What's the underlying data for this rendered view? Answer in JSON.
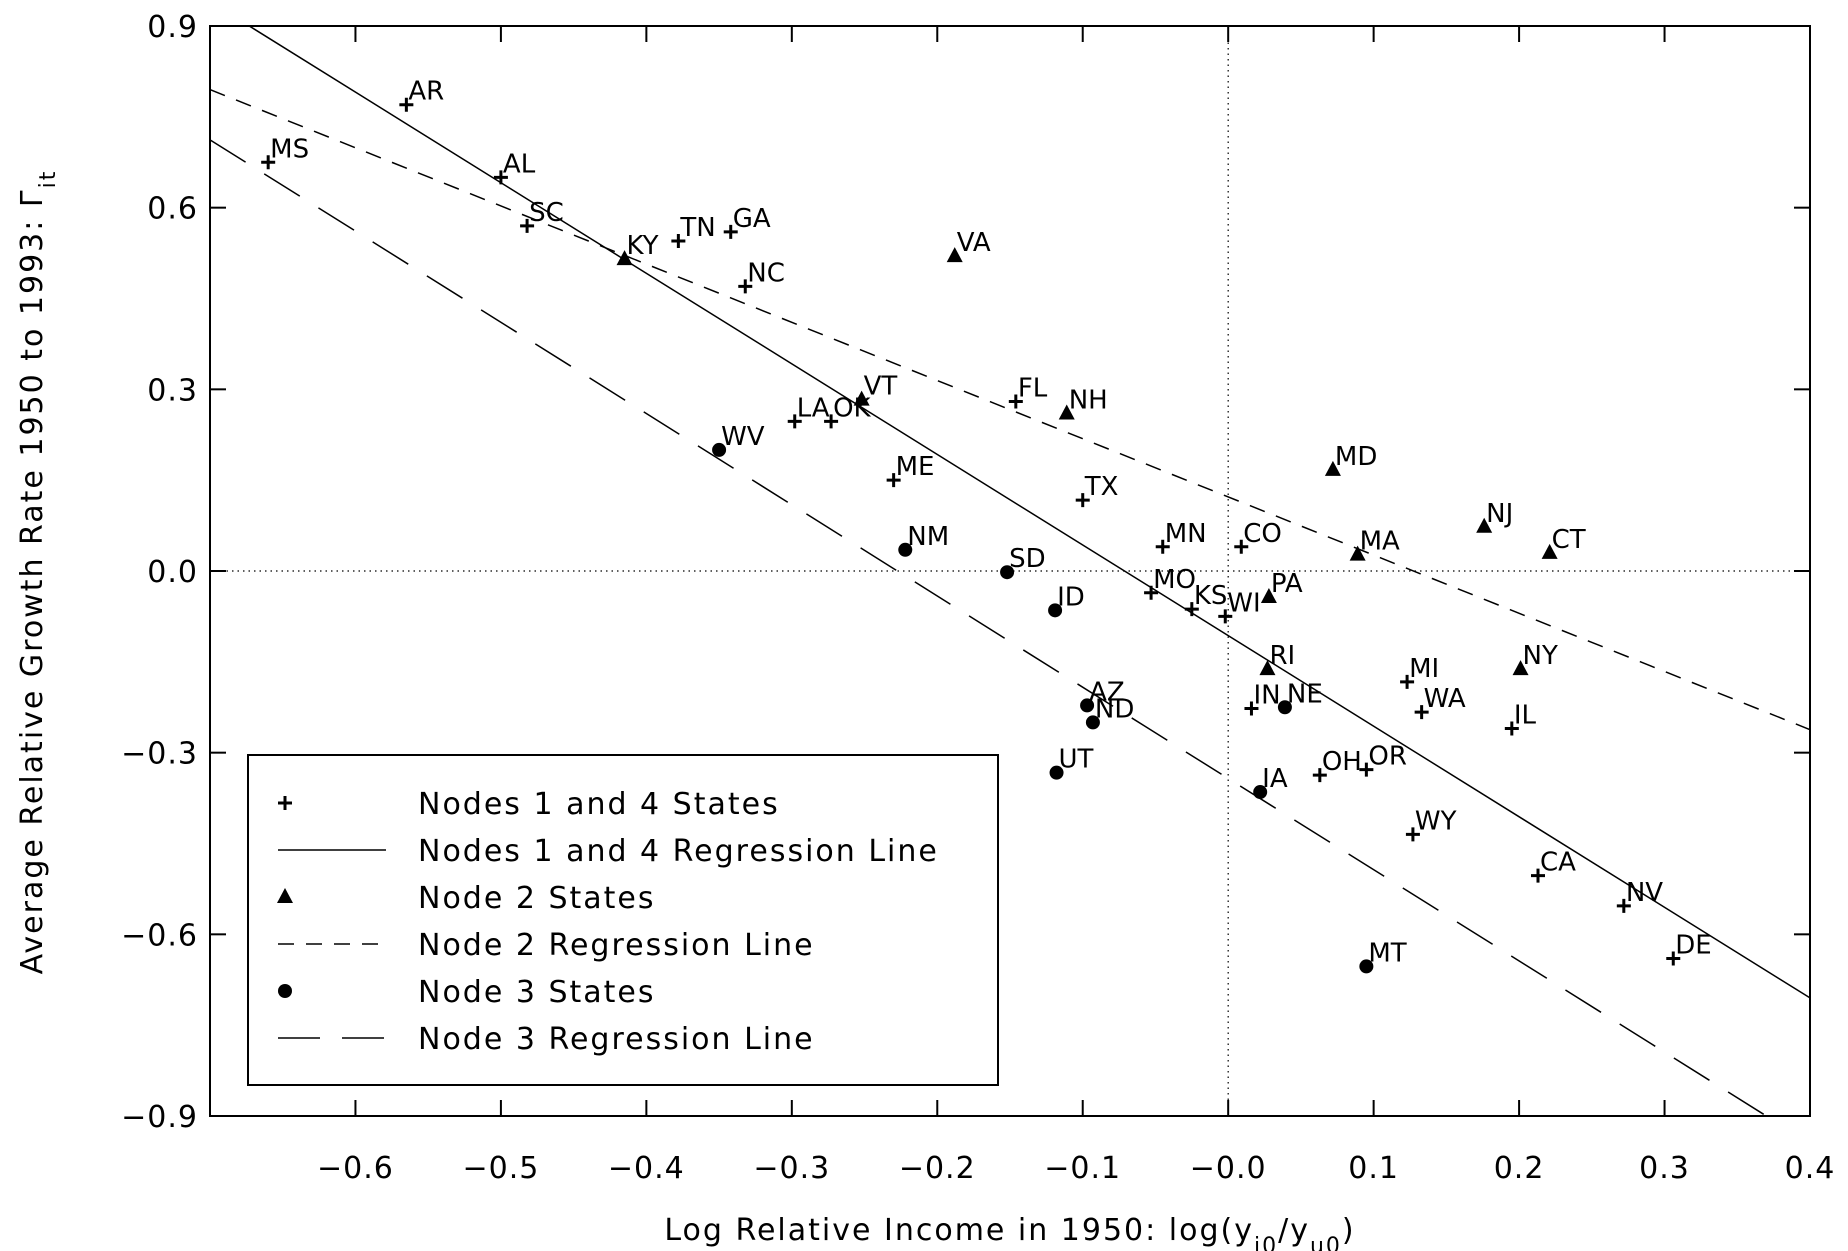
{
  "chart_data": {
    "type": "scatter",
    "xlabel": "Log Relative Income in 1950: log(y",
    "xlabel_parts": {
      "sub1": "i0",
      "slash": "/y",
      "sub2": "u0",
      "close": ")"
    },
    "ylabel": "Average Relative Growth Rate 1950 to 1993: Γ",
    "ylabel_sub": "it",
    "xlim": [
      -0.7,
      0.4
    ],
    "ylim": [
      -0.9,
      0.9
    ],
    "xticks": [
      -0.6,
      -0.5,
      -0.4,
      -0.3,
      -0.2,
      -0.1,
      0.0,
      0.1,
      0.2,
      0.3,
      0.4
    ],
    "xtick_labels": [
      "−0.6",
      "−0.5",
      "−0.4",
      "−0.3",
      "−0.2",
      "−0.1",
      "−0.0",
      "0.1",
      "0.2",
      "0.3",
      "0.4"
    ],
    "yticks": [
      -0.9,
      -0.6,
      -0.3,
      0.0,
      0.3,
      0.6,
      0.9
    ],
    "ytick_labels": [
      "−0.9",
      "−0.6",
      "−0.3",
      "0.0",
      "0.3",
      "0.6",
      "0.9"
    ],
    "reference_lines": {
      "x": 0.0,
      "y": 0.0,
      "style": "dotted"
    },
    "legend": {
      "placement": "bottom-left",
      "entries": [
        {
          "label": "Nodes 1 and 4 States",
          "marker": "plus"
        },
        {
          "label": "Nodes 1 and 4 Regression Line",
          "line": "solid"
        },
        {
          "label": "Node 2 States",
          "marker": "triangle"
        },
        {
          "label": "Node 2 Regression Line",
          "line": "short-dash"
        },
        {
          "label": "Node 3 States",
          "marker": "circle"
        },
        {
          "label": "Node 3 Regression Line",
          "line": "long-dash"
        }
      ]
    },
    "series": [
      {
        "name": "Nodes 1 and 4 States",
        "marker": "plus",
        "points": [
          {
            "label": "AR",
            "x": -0.565,
            "y": 0.77
          },
          {
            "label": "MS",
            "x": -0.66,
            "y": 0.675
          },
          {
            "label": "AL",
            "x": -0.5,
            "y": 0.65
          },
          {
            "label": "SC",
            "x": -0.482,
            "y": 0.57
          },
          {
            "label": "TN",
            "x": -0.378,
            "y": 0.545
          },
          {
            "label": "GA",
            "x": -0.342,
            "y": 0.56
          },
          {
            "label": "NC",
            "x": -0.332,
            "y": 0.47
          },
          {
            "label": "LA",
            "x": -0.298,
            "y": 0.247
          },
          {
            "label": "OK",
            "x": -0.273,
            "y": 0.247
          },
          {
            "label": "ME",
            "x": -0.23,
            "y": 0.15
          },
          {
            "label": "FL",
            "x": -0.146,
            "y": 0.28
          },
          {
            "label": "TX",
            "x": -0.1,
            "y": 0.117
          },
          {
            "label": "MN",
            "x": -0.045,
            "y": 0.04
          },
          {
            "label": "CO",
            "x": 0.009,
            "y": 0.04
          },
          {
            "label": "MO",
            "x": -0.053,
            "y": -0.036
          },
          {
            "label": "KS",
            "x": -0.025,
            "y": -0.063
          },
          {
            "label": "WI",
            "x": -0.002,
            "y": -0.075
          },
          {
            "label": "IN",
            "x": 0.016,
            "y": -0.227
          },
          {
            "label": "MI",
            "x": 0.123,
            "y": -0.183
          },
          {
            "label": "WA",
            "x": 0.133,
            "y": -0.233
          },
          {
            "label": "IL",
            "x": 0.195,
            "y": -0.26
          },
          {
            "label": "OH",
            "x": 0.063,
            "y": -0.337
          },
          {
            "label": "OR",
            "x": 0.095,
            "y": -0.328
          },
          {
            "label": "WY",
            "x": 0.127,
            "y": -0.435
          },
          {
            "label": "CA",
            "x": 0.213,
            "y": -0.503
          },
          {
            "label": "NV",
            "x": 0.272,
            "y": -0.553
          },
          {
            "label": "DE",
            "x": 0.306,
            "y": -0.64
          }
        ]
      },
      {
        "name": "Node 2 States",
        "marker": "triangle",
        "points": [
          {
            "label": "KY",
            "x": -0.415,
            "y": 0.515
          },
          {
            "label": "VA",
            "x": -0.188,
            "y": 0.52
          },
          {
            "label": "VT",
            "x": -0.252,
            "y": 0.283
          },
          {
            "label": "NH",
            "x": -0.111,
            "y": 0.26
          },
          {
            "label": "MD",
            "x": 0.072,
            "y": 0.167
          },
          {
            "label": "NJ",
            "x": 0.176,
            "y": 0.073
          },
          {
            "label": "CT",
            "x": 0.221,
            "y": 0.03
          },
          {
            "label": "MA",
            "x": 0.089,
            "y": 0.027
          },
          {
            "label": "PA",
            "x": 0.028,
            "y": -0.043
          },
          {
            "label": "RI",
            "x": 0.027,
            "y": -0.162
          },
          {
            "label": "NY",
            "x": 0.201,
            "y": -0.162
          }
        ]
      },
      {
        "name": "Node 3 States",
        "marker": "circle",
        "points": [
          {
            "label": "WV",
            "x": -0.35,
            "y": 0.2
          },
          {
            "label": "NM",
            "x": -0.222,
            "y": 0.035
          },
          {
            "label": "SD",
            "x": -0.152,
            "y": -0.002
          },
          {
            "label": "ID",
            "x": -0.119,
            "y": -0.065
          },
          {
            "label": "AZ",
            "x": -0.097,
            "y": -0.222
          },
          {
            "label": "ND",
            "x": -0.093,
            "y": -0.25
          },
          {
            "label": "UT",
            "x": -0.118,
            "y": -0.333
          },
          {
            "label": "NE",
            "x": 0.039,
            "y": -0.225
          },
          {
            "label": "IA",
            "x": 0.022,
            "y": -0.365
          },
          {
            "label": "MT",
            "x": 0.095,
            "y": -0.653
          }
        ]
      }
    ],
    "regression_lines": [
      {
        "name": "Nodes 1 and 4 Regression Line",
        "style": "solid",
        "x": [
          -0.673,
          0.4
        ],
        "y": [
          0.9,
          -0.705
        ]
      },
      {
        "name": "Node 2 Regression Line",
        "style": "short-dash",
        "x": [
          -0.7,
          0.4
        ],
        "y": [
          0.795,
          -0.262
        ]
      },
      {
        "name": "Node 3 Regression Line",
        "style": "long-dash",
        "x": [
          -0.7,
          0.37
        ],
        "y": [
          0.712,
          -0.9
        ]
      }
    ]
  }
}
